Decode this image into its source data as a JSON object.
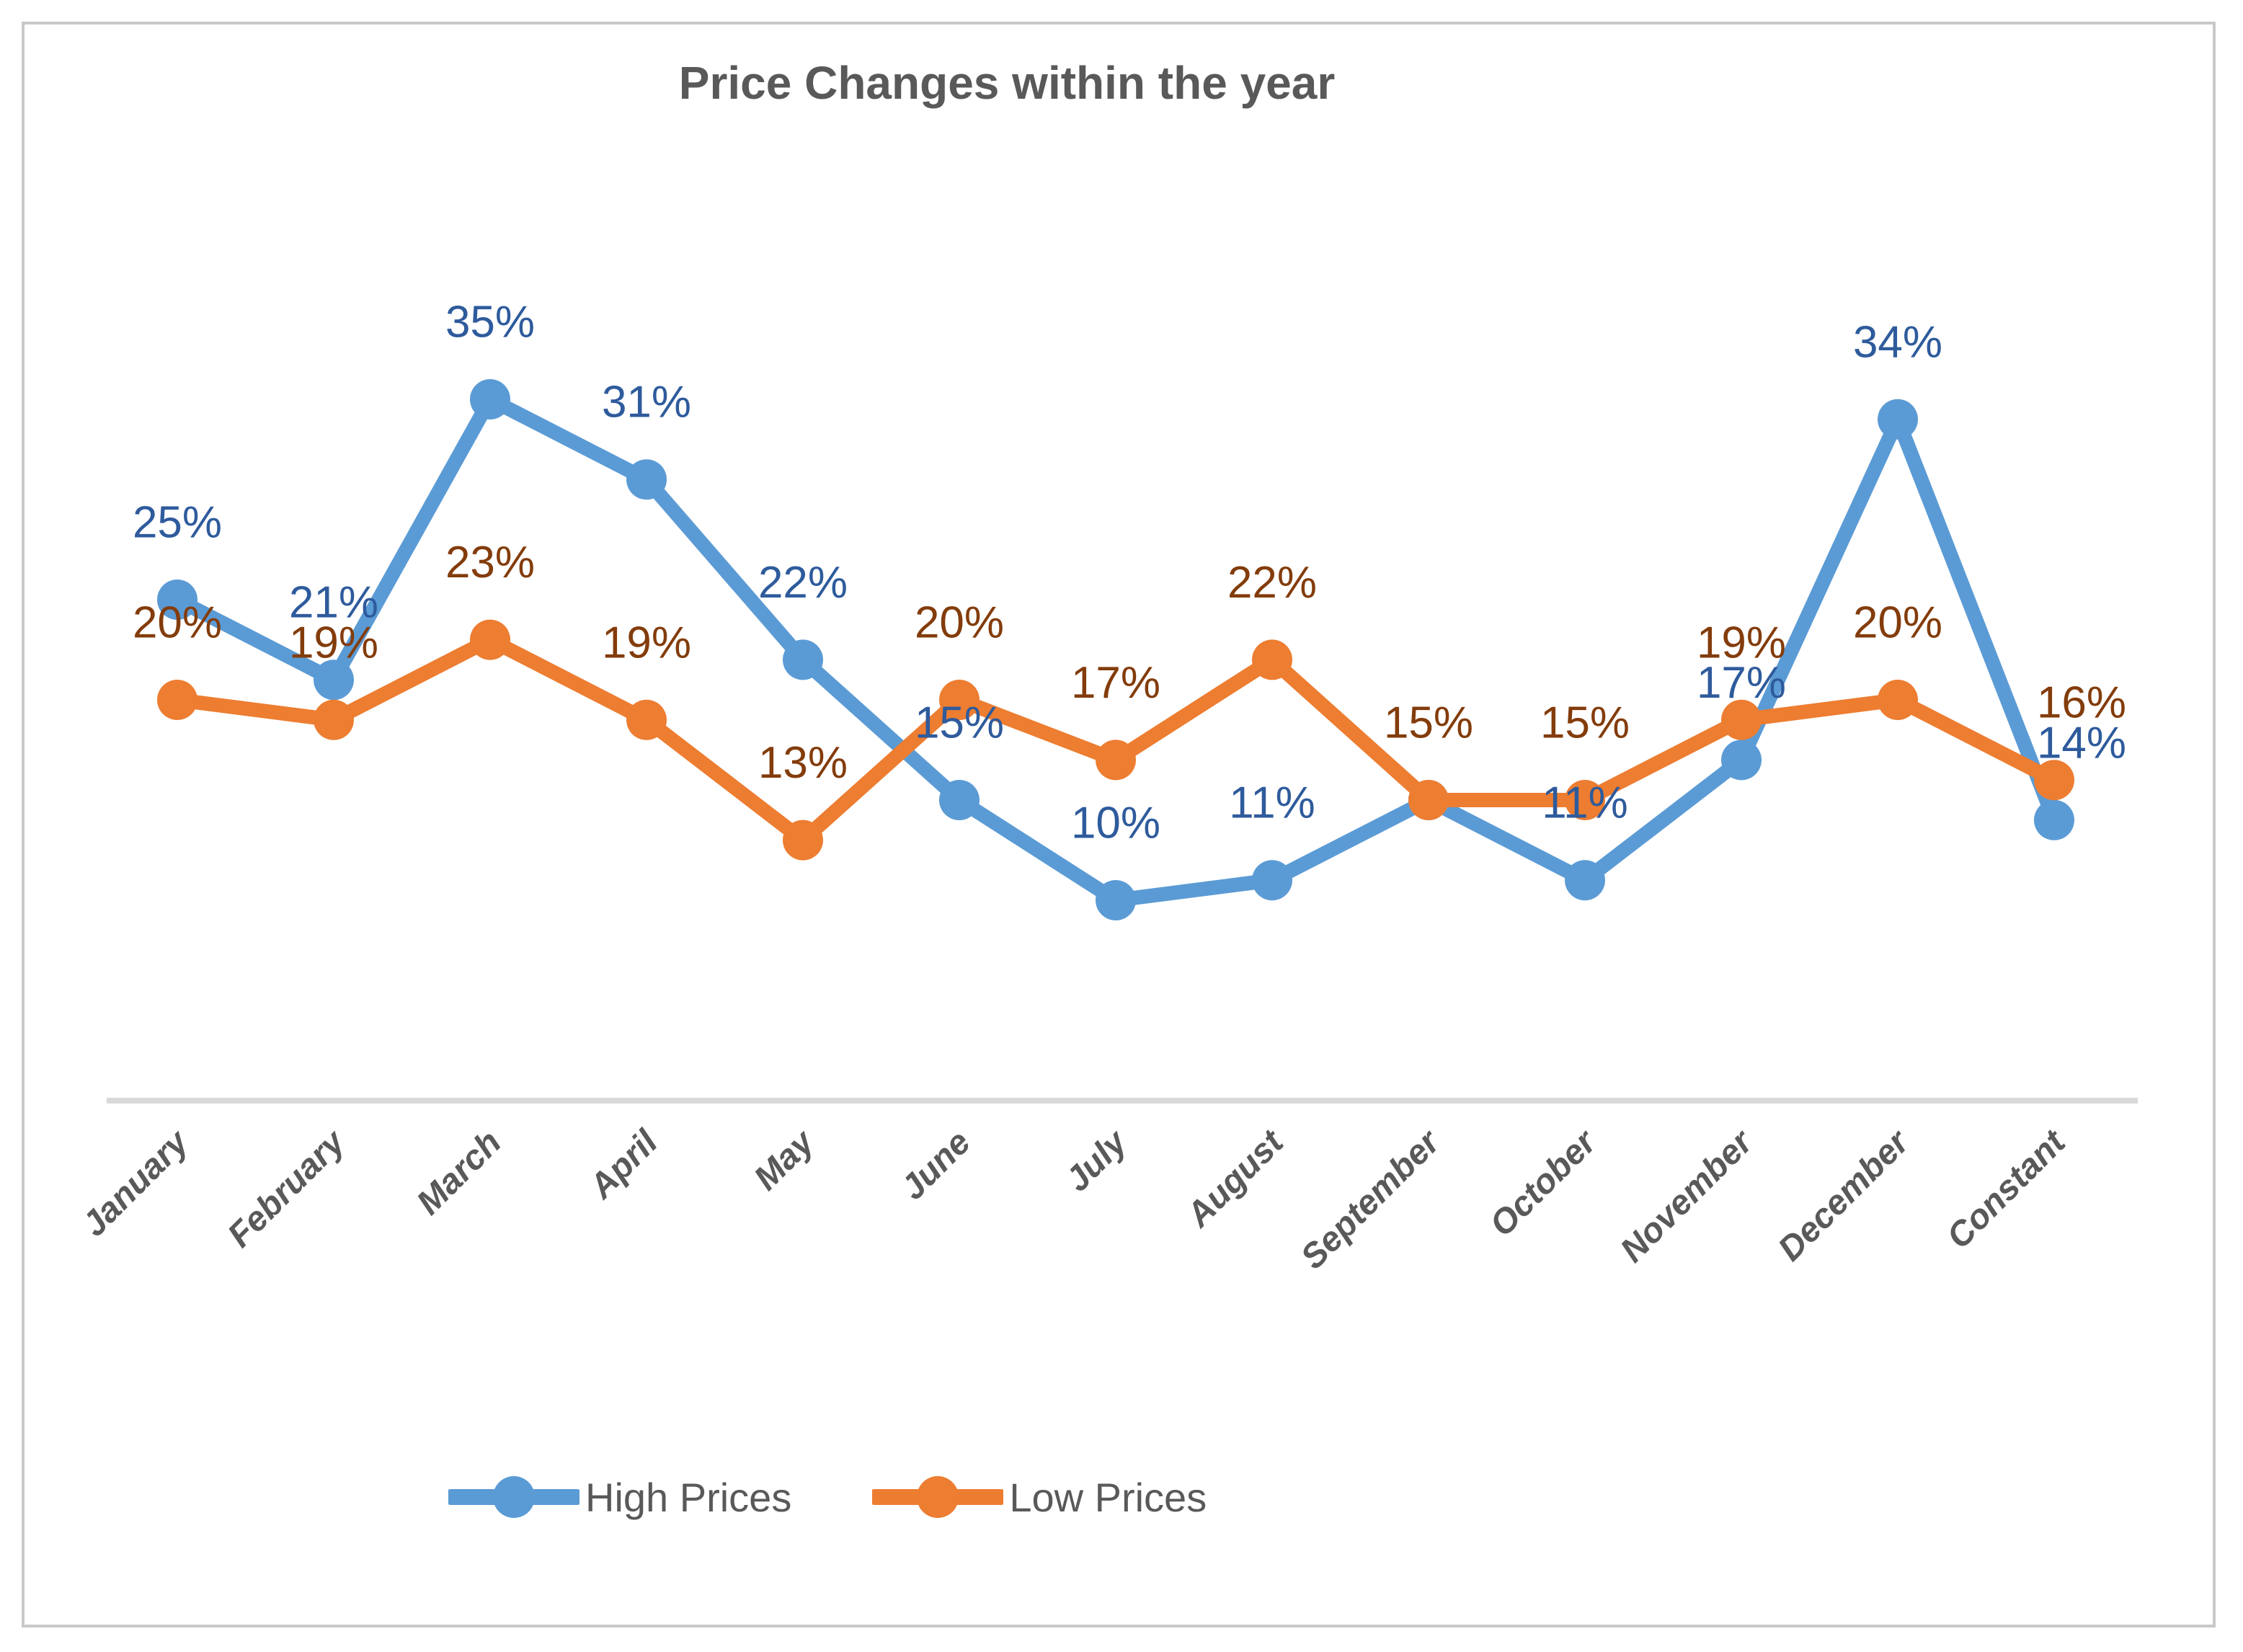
{
  "title": "Price Changes within the year",
  "colors": {
    "high_series": "#5B9BD5",
    "low_series": "#ED7D31",
    "high_label_text": "#2E5B9C",
    "low_label_text": "#833C0B",
    "axis_line": "#D9D9D9",
    "category_text": "#595959",
    "title_text": "#595959",
    "legend_text": "#595959",
    "border": "#C9C9C9"
  },
  "legend": {
    "items": [
      {
        "label": "High Prices"
      },
      {
        "label": "Low Prices"
      }
    ]
  },
  "chart_data": {
    "type": "line",
    "title": "Price Changes within the year",
    "categories": [
      "January",
      "February",
      "March",
      "April",
      "May",
      "June",
      "July",
      "August",
      "September",
      "October",
      "November",
      "December",
      "Constant"
    ],
    "series": [
      {
        "name": "High Prices",
        "color": "#5B9BD5",
        "label_color": "#2E5B9C",
        "values": [
          25,
          21,
          35,
          31,
          22,
          15,
          10,
          11,
          15,
          11,
          17,
          34,
          14
        ],
        "labels_hidden_at": [
          8
        ]
      },
      {
        "name": "Low Prices",
        "color": "#ED7D31",
        "label_color": "#833C0B",
        "values": [
          20,
          19,
          23,
          19,
          13,
          20,
          17,
          22,
          15,
          15,
          19,
          20,
          16
        ],
        "labels_hidden_at": []
      }
    ],
    "value_suffix": "%",
    "ylim": [
      0,
      40
    ],
    "y_axis_visible": false,
    "gridlines": false,
    "data_labels_position": "above",
    "marker": "circle",
    "legend_position": "bottom"
  }
}
